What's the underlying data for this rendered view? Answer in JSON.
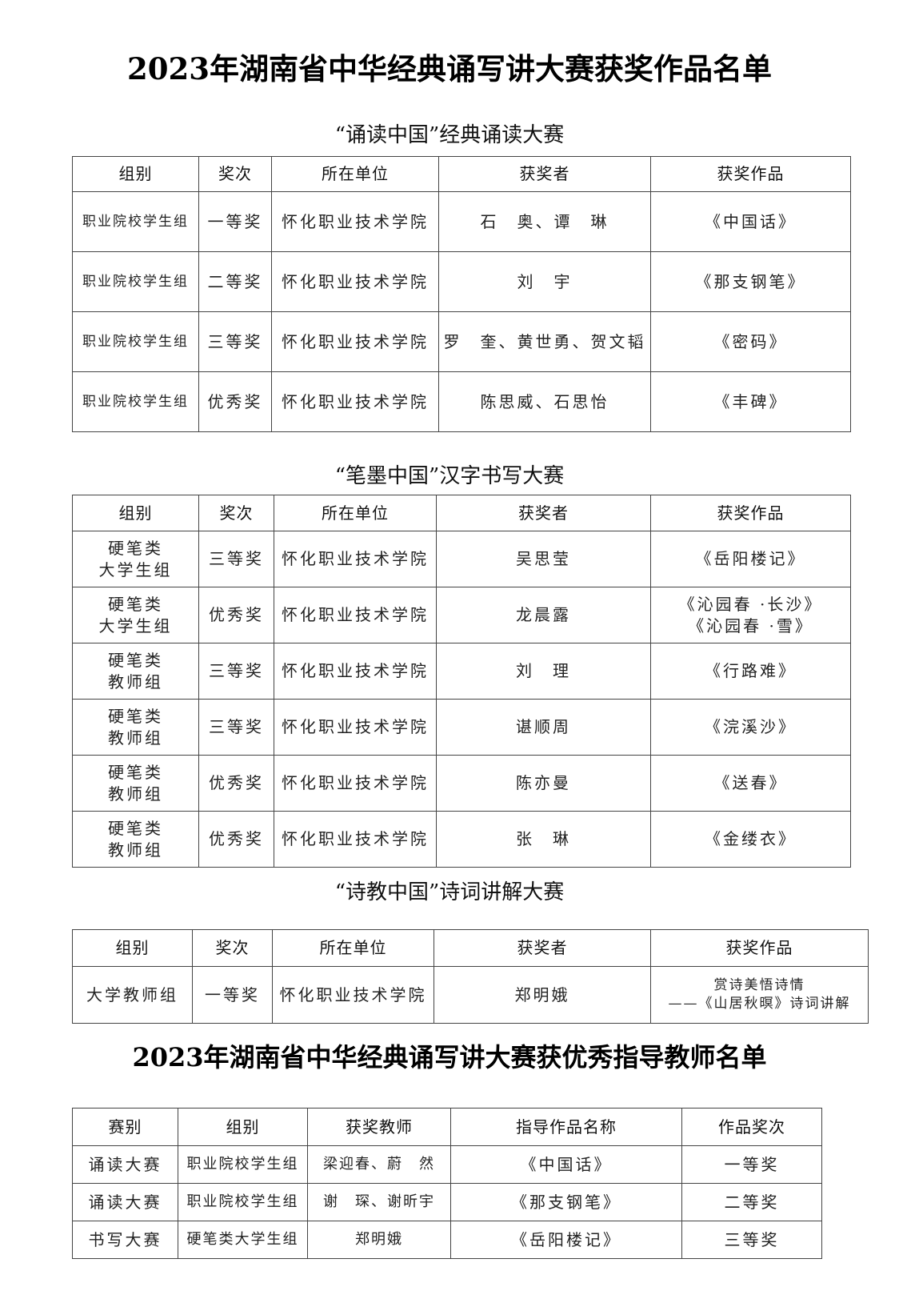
{
  "title": "2023年湖南省中华经典诵写讲大赛获奖作品名单",
  "sections": [
    {
      "heading": "“诵读中国”经典诵读大赛",
      "headers": [
        "组别",
        "奖次",
        "所在单位",
        "获奖者",
        "获奖作品"
      ],
      "rows": [
        [
          "职业院校学生组",
          "一等奖",
          "怀化职业技术学院",
          "石　奥、谭　琳",
          "《中国话》"
        ],
        [
          "职业院校学生组",
          "二等奖",
          "怀化职业技术学院",
          "刘　宇",
          "《那支钢笔》"
        ],
        [
          "职业院校学生组",
          "三等奖",
          "怀化职业技术学院",
          "罗　奎、黄世勇、贺文韬",
          "《密码》"
        ],
        [
          "职业院校学生组",
          "优秀奖",
          "怀化职业技术学院",
          "陈思威、石思怡",
          "《丰碑》"
        ]
      ]
    },
    {
      "heading": "“笔墨中国”汉字书写大赛",
      "headers": [
        "组别",
        "奖次",
        "所在单位",
        "获奖者",
        "获奖作品"
      ],
      "rows": [
        [
          "硬笔类\n大学生组",
          "三等奖",
          "怀化职业技术学院",
          "吴思莹",
          "《岳阳楼记》"
        ],
        [
          "硬笔类\n大学生组",
          "优秀奖",
          "怀化职业技术学院",
          "龙晨露",
          "《沁园春 ·长沙》\n《沁园春 ·雪》"
        ],
        [
          "硬笔类\n教师组",
          "三等奖",
          "怀化职业技术学院",
          "刘　理",
          "《行路难》"
        ],
        [
          "硬笔类\n教师组",
          "三等奖",
          "怀化职业技术学院",
          "谌顺周",
          "《浣溪沙》"
        ],
        [
          "硬笔类\n教师组",
          "优秀奖",
          "怀化职业技术学院",
          "陈亦曼",
          "《送春》"
        ],
        [
          "硬笔类\n教师组",
          "优秀奖",
          "怀化职业技术学院",
          "张　琳",
          "《金缕衣》"
        ]
      ]
    },
    {
      "heading": "“诗教中国”诗词讲解大赛",
      "headers": [
        "组别",
        "奖次",
        "所在单位",
        "获奖者",
        "获奖作品"
      ],
      "rows": [
        [
          "大学教师组",
          "一等奖",
          "怀化职业技术学院",
          "郑明娥",
          "赏诗美悟诗情\n——《山居秋暝》诗词讲解"
        ]
      ]
    }
  ],
  "teacher_title": "2023年湖南省中华经典诵写讲大赛获优秀指导教师名单",
  "teachers": {
    "headers": [
      "赛别",
      "组别",
      "获奖教师",
      "指导作品名称",
      "作品奖次"
    ],
    "rows": [
      [
        "诵读大赛",
        "职业院校学生组",
        "梁迎春、蔚　然",
        "《中国话》",
        "一等奖"
      ],
      [
        "诵读大赛",
        "职业院校学生组",
        "谢　琛、谢昕宇",
        "《那支钢笔》",
        "二等奖"
      ],
      [
        "书写大赛",
        "硬笔类大学生组",
        "郑明娥",
        "《岳阳楼记》",
        "三等奖"
      ]
    ]
  }
}
